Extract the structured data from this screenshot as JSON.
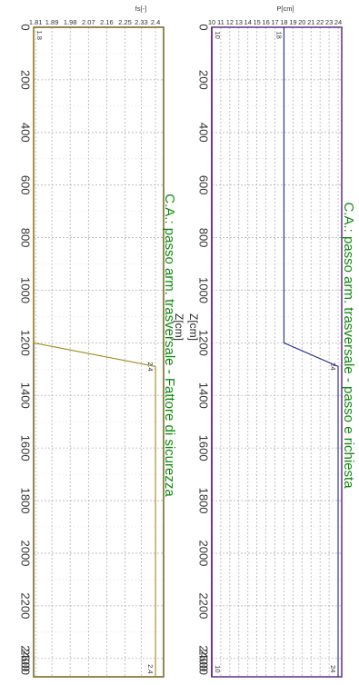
{
  "colors": {
    "grid": "#b3b3b3",
    "frame_left": "#7a6a2a",
    "frame_right": "#6a3b8a",
    "line_left": "#a08a1a",
    "line_right": "#1e2a8c",
    "title": "#0c8a0c",
    "tick_text": "#333333"
  },
  "chart_data": [
    {
      "type": "line",
      "orientation": "rotated-90",
      "title": "C.A.: passo arm. trasversale - Fattore di sicurezza",
      "xlabel": "Z[cm]",
      "ylabel": "fs[-]",
      "x_ticks": [
        "0",
        "200",
        "400",
        "600",
        "800",
        "1000",
        "1200",
        "1400",
        "1600",
        "1800",
        "2000",
        "2200",
        "2400"
      ],
      "x_end_label": "2600",
      "xlim": [
        0,
        2470
      ],
      "y_ticks": [
        "1.81",
        "1.89",
        "1.98",
        "2.07",
        "2.16",
        "2.25",
        "2.33",
        "2.4"
      ],
      "ylim": [
        1.8,
        2.44
      ],
      "series": [
        {
          "x": [
            0,
            1200,
            1290,
            2470
          ],
          "y": [
            1.8,
            1.8,
            2.4,
            2.4
          ]
        }
      ],
      "annotations": [
        {
          "text": "1.8",
          "x": 30,
          "y": 1.8
        },
        {
          "text": "2.4",
          "x": 1290,
          "y": 2.4
        },
        {
          "text": "2.4",
          "x": 2440,
          "y": 2.4
        }
      ]
    },
    {
      "type": "line",
      "orientation": "rotated-90",
      "title": "C.A.: passo arm. trasversale - passo e richiesta",
      "xlabel": "Z[cm]",
      "ylabel": "P[cm]",
      "x_ticks": [
        "0",
        "200",
        "400",
        "600",
        "800",
        "1000",
        "1200",
        "1400",
        "1600",
        "1800",
        "2000",
        "2200",
        "2400"
      ],
      "x_end_label": "2600",
      "xlim": [
        0,
        2470
      ],
      "y_ticks": [
        "10",
        "11",
        "12",
        "13",
        "14",
        "15",
        "16",
        "17",
        "18",
        "19",
        "20",
        "21",
        "22",
        "23",
        "24"
      ],
      "ylim": [
        10,
        24.4
      ],
      "series": [
        {
          "x": [
            0,
            1200,
            1290,
            2470
          ],
          "y": [
            18,
            18,
            24,
            24
          ]
        },
        {
          "x": [
            0,
            2470
          ],
          "y": [
            10,
            10
          ]
        }
      ],
      "annotations": [
        {
          "text": "10",
          "x": 30,
          "y": 10
        },
        {
          "text": "18",
          "x": 30,
          "y": 18
        },
        {
          "text": "24",
          "x": 1290,
          "y": 24
        },
        {
          "text": "10",
          "x": 2440,
          "y": 10
        },
        {
          "text": "24",
          "x": 2440,
          "y": 24
        }
      ]
    }
  ]
}
